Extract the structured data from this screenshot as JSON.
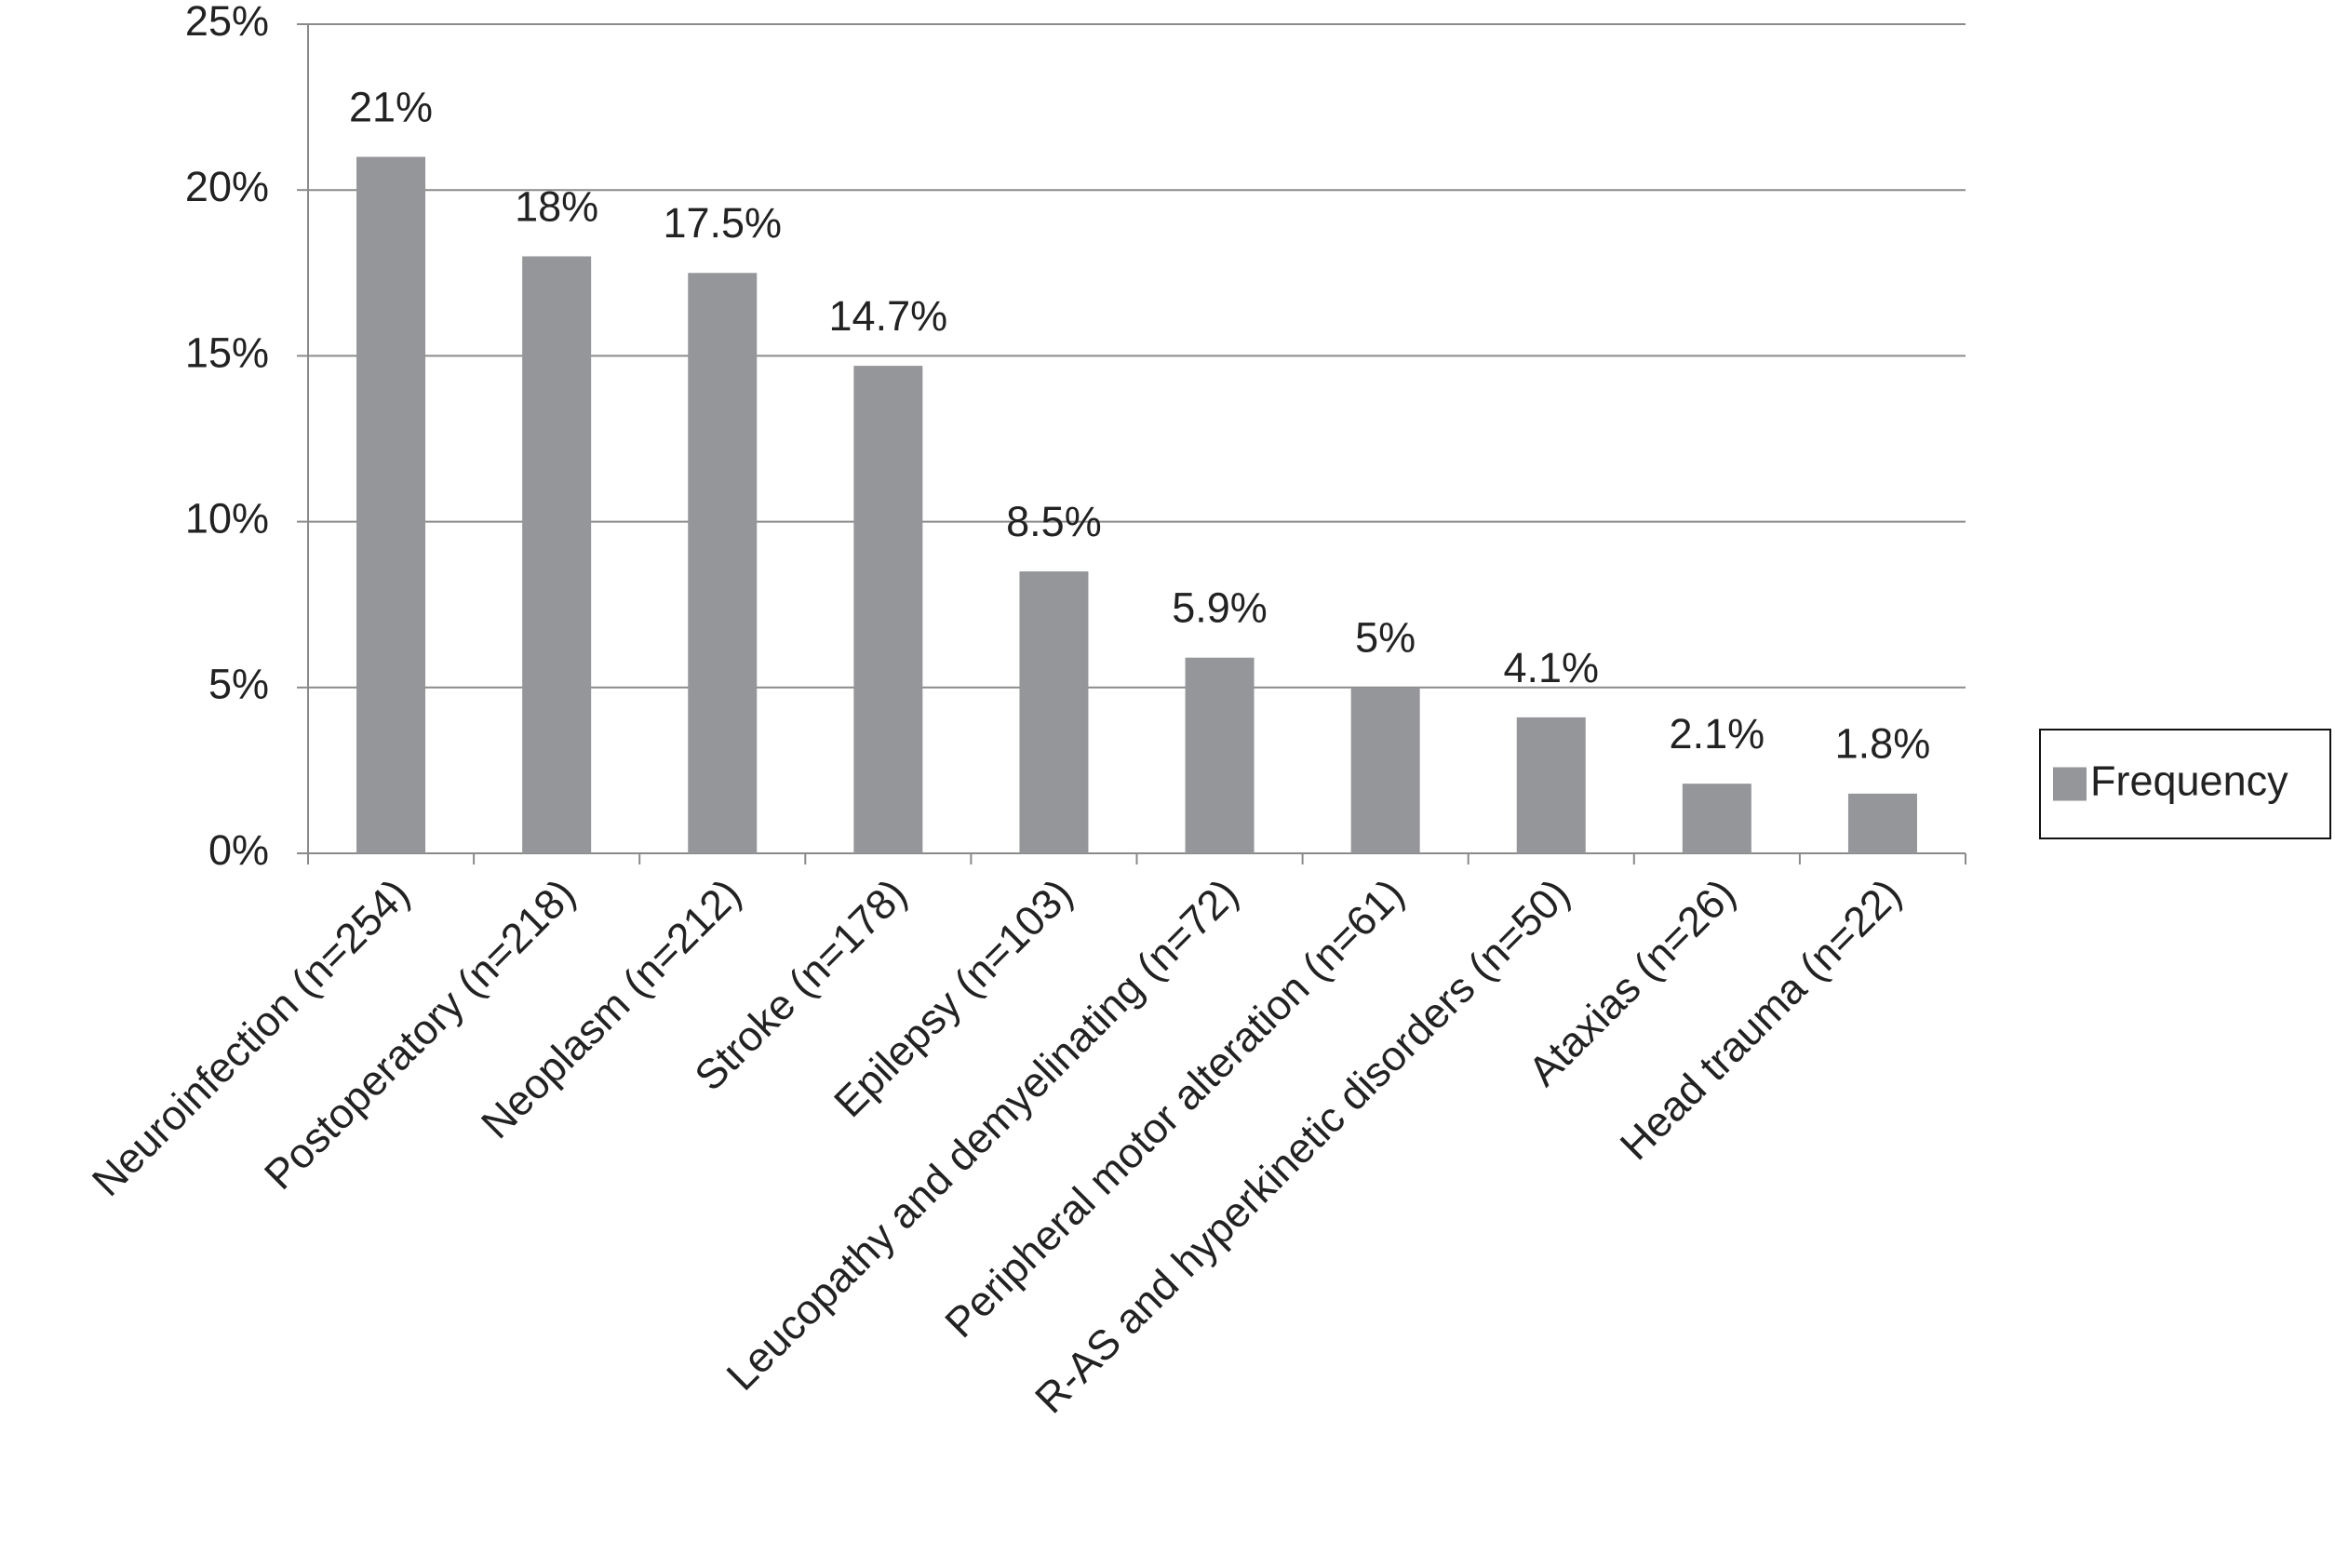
{
  "chart_data": {
    "type": "bar",
    "categories": [
      "Neuroinfection (n=254)",
      "Postoperatory (n=218)",
      "Neoplasm (n=212)",
      "Stroke (n=178)",
      "Epilepsy (n=103)",
      "Leucopathy and demyelinating (n=72)",
      "Peripheral motor alteration (n=61)",
      "R-AS and hyperkinetic disorders (n=50)",
      "Ataxias (n=26)",
      "Head trauma (n=22)"
    ],
    "series": [
      {
        "name": "Frequency",
        "color": "#949699",
        "values": [
          21,
          18,
          17.5,
          14.7,
          8.5,
          5.9,
          5,
          4.1,
          2.1,
          1.8
        ],
        "value_labels": [
          "21%",
          "18%",
          "17.5%",
          "14.7%",
          "8.5%",
          "5.9%",
          "5%",
          "4.1%",
          "2.1%",
          "1.8%"
        ]
      }
    ],
    "ylim": [
      0,
      25
    ],
    "yticks": [
      {
        "value": 0,
        "label": "0%"
      },
      {
        "value": 5,
        "label": "5%"
      },
      {
        "value": 10,
        "label": "10%"
      },
      {
        "value": 15,
        "label": "15%"
      },
      {
        "value": 20,
        "label": "20%"
      },
      {
        "value": 25,
        "label": "25%"
      }
    ],
    "grid": true,
    "legend": "right"
  }
}
